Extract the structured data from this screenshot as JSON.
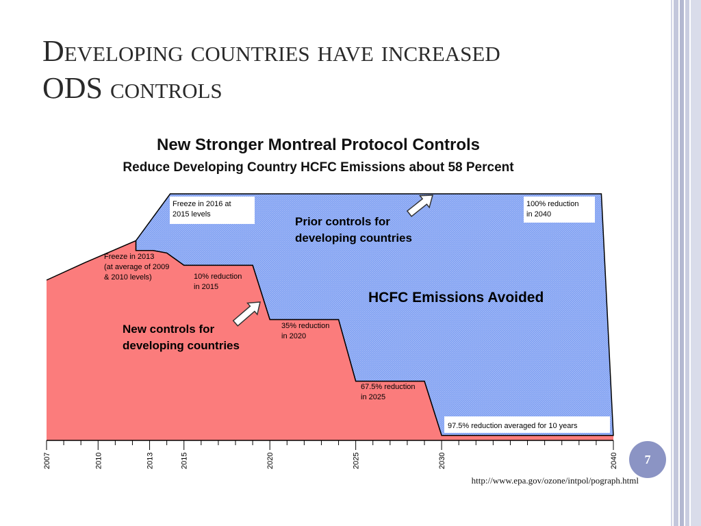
{
  "slide": {
    "title_line1": "Developing countries have increased",
    "title_line2": "ODS controls",
    "page_number": "7",
    "source": "http://www.epa.gov/ozone/intpol/pograph.html"
  },
  "colors": {
    "new_controls": "#fb7c7c",
    "avoided": "#7b9ef2",
    "avoided_hatch": "#a9bdf6",
    "badge": "#8b94c4"
  },
  "chart_data": {
    "type": "area",
    "title": "New Stronger Montreal Protocol Controls",
    "subtitle": "Reduce Developing Country HCFC Emissions about 58 Percent",
    "x_ticks": [
      "2007",
      "2010",
      "2013",
      "2015",
      "2020",
      "2025",
      "2030",
      "2040"
    ],
    "xlim": [
      2007,
      2040
    ],
    "ylim": [
      0,
      100
    ],
    "series": [
      {
        "name": "New controls for developing countries",
        "points": [
          [
            2007,
            65
          ],
          [
            2009.2,
            72
          ],
          [
            2012.2,
            81
          ],
          [
            2012.2,
            77
          ],
          [
            2013.2,
            77
          ],
          [
            2014,
            76
          ],
          [
            2015,
            71
          ],
          [
            2019,
            71
          ],
          [
            2020,
            49
          ],
          [
            2024,
            49
          ],
          [
            2025,
            24
          ],
          [
            2029,
            24
          ],
          [
            2030,
            2
          ],
          [
            2040,
            2
          ]
        ]
      },
      {
        "name": "HCFC Emissions Avoided",
        "points": [
          [
            2012.2,
            81
          ],
          [
            2014.2,
            100
          ],
          [
            2039.3,
            100
          ],
          [
            2040,
            2
          ]
        ]
      }
    ],
    "annotations": {
      "freeze_2013": [
        "Freeze in 2013",
        "(at average of 2009",
        "& 2010 levels)"
      ],
      "freeze_2016": [
        "Freeze in 2016 at",
        "2015 levels"
      ],
      "reduction_10": [
        "10% reduction",
        "in 2015"
      ],
      "reduction_35": [
        "35% reduction",
        "in 2020"
      ],
      "reduction_67": [
        "67.5% reduction",
        "in 2025"
      ],
      "reduction_97": [
        "97.5% reduction averaged for 10 years"
      ],
      "reduction_100": [
        "100% reduction",
        "in 2040"
      ],
      "prior_controls": [
        "Prior controls for",
        "developing countries"
      ],
      "new_controls": [
        "New controls for",
        "developing countries"
      ],
      "avoided": [
        "HCFC Emissions Avoided"
      ]
    }
  }
}
